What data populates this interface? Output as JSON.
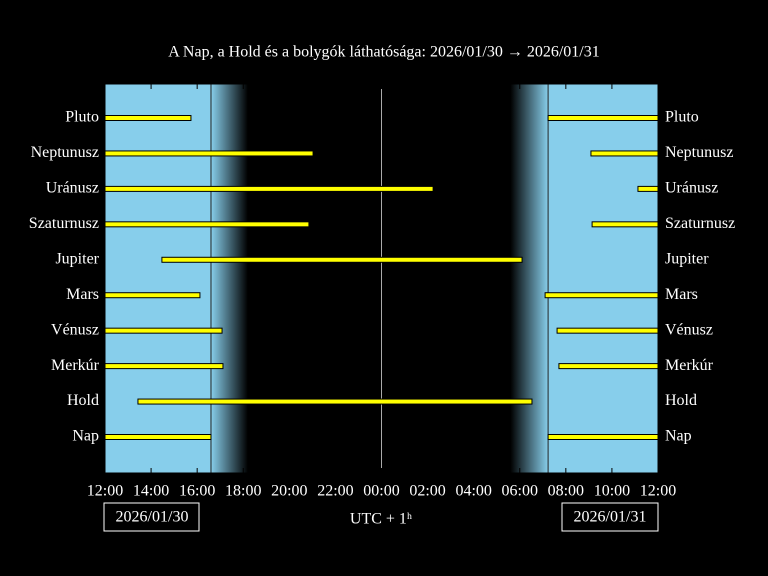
{
  "chart_data": {
    "type": "timeline",
    "title": "A Nap, a Hold és a bolygók láthatósága: 2026/01/30 → 2026/01/31",
    "xlabel": "UTC + 1ʰ",
    "start_date": "2026/01/30",
    "end_date": "2026/01/31",
    "xlim": [
      0,
      24
    ],
    "xticks": [
      {
        "value": 0,
        "label": "12:00"
      },
      {
        "value": 2,
        "label": "14:00"
      },
      {
        "value": 4,
        "label": "16:00"
      },
      {
        "value": 6,
        "label": "18:00"
      },
      {
        "value": 8,
        "label": "20:00"
      },
      {
        "value": 10,
        "label": "22:00"
      },
      {
        "value": 12,
        "label": "00:00"
      },
      {
        "value": 14,
        "label": "02:00"
      },
      {
        "value": 16,
        "label": "04:00"
      },
      {
        "value": 18,
        "label": "06:00"
      },
      {
        "value": 20,
        "label": "08:00"
      },
      {
        "value": 22,
        "label": "10:00"
      },
      {
        "value": 24,
        "label": "12:00"
      }
    ],
    "midnight": 12,
    "twilight": {
      "sunset": 4.6,
      "night_start": 6.2,
      "night_end": 17.6,
      "sunrise": 19.23
    },
    "day_color": "#87ceeb",
    "night_color": "#000000",
    "bar_color": "#ffff00",
    "bodies": [
      {
        "name": "Pluto",
        "intervals": [
          [
            0,
            3.73
          ],
          [
            19.23,
            24
          ]
        ]
      },
      {
        "name": "Neptunusz",
        "intervals": [
          [
            0,
            9.03
          ],
          [
            21.09,
            24
          ]
        ]
      },
      {
        "name": "Uránusz",
        "intervals": [
          [
            0,
            14.24
          ],
          [
            23.13,
            24
          ]
        ]
      },
      {
        "name": "Szaturnusz",
        "intervals": [
          [
            0,
            8.85
          ],
          [
            21.14,
            24
          ]
        ]
      },
      {
        "name": "Jupiter",
        "intervals": [
          [
            2.47,
            18.1
          ]
        ]
      },
      {
        "name": "Mars",
        "intervals": [
          [
            0,
            4.12
          ],
          [
            19.1,
            24
          ]
        ]
      },
      {
        "name": "Vénusz",
        "intervals": [
          [
            0,
            5.08
          ],
          [
            19.62,
            24
          ]
        ]
      },
      {
        "name": "Merkúr",
        "intervals": [
          [
            0,
            5.12
          ],
          [
            19.7,
            24
          ]
        ]
      },
      {
        "name": "Hold",
        "intervals": [
          [
            1.43,
            18.53
          ]
        ]
      },
      {
        "name": "Nap",
        "intervals": [
          [
            0,
            4.6
          ],
          [
            19.23,
            24
          ]
        ]
      }
    ]
  }
}
